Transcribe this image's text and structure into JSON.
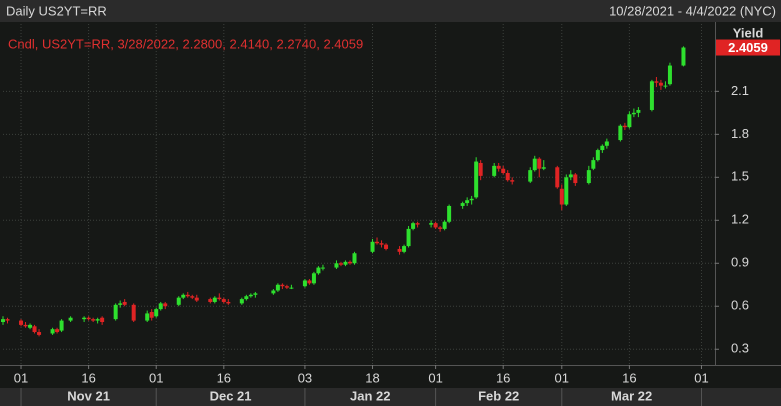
{
  "header": {
    "title": "Daily US2YT=RR",
    "range": "10/28/2021 - 4/4/2022 (NYC)"
  },
  "chart_data": {
    "type": "candlestick",
    "legend": "Cndl, US2YT=RR, 3/28/2022, 2.2800, 2.4140, 2.2740, 2.4059",
    "y_label": "Yield",
    "up_color": "#2ee02e",
    "down_color": "#e02424",
    "grid": true,
    "last_value": 2.4059,
    "xlim": [
      "2021-10-28",
      "2022-04-04"
    ],
    "xticks": [
      {
        "value": "2021-11-01",
        "label": "01"
      },
      {
        "value": "2021-11-16",
        "label": "16"
      },
      {
        "value": "2021-12-01",
        "label": "01"
      },
      {
        "value": "2021-12-16",
        "label": "16"
      },
      {
        "value": "2022-01-03",
        "label": "03"
      },
      {
        "value": "2022-01-18",
        "label": "18"
      },
      {
        "value": "2022-02-01",
        "label": "01"
      },
      {
        "value": "2022-02-16",
        "label": "16"
      },
      {
        "value": "2022-03-01",
        "label": "01"
      },
      {
        "value": "2022-03-16",
        "label": "16"
      },
      {
        "value": "2022-04-01",
        "label": "01"
      }
    ],
    "month_labels": [
      "Nov 21",
      "Dec 21",
      "Jan 22",
      "Feb 22",
      "Mar 22"
    ],
    "ylim": [
      0.19,
      2.57
    ],
    "yticks": [
      0.3,
      0.6,
      0.9,
      1.2,
      1.5,
      1.8,
      2.1
    ],
    "x": [
      "2021-10-28",
      "2021-10-29",
      "2021-11-01",
      "2021-11-02",
      "2021-11-03",
      "2021-11-04",
      "2021-11-05",
      "2021-11-08",
      "2021-11-09",
      "2021-11-10",
      "2021-11-12",
      "2021-11-15",
      "2021-11-16",
      "2021-11-17",
      "2021-11-18",
      "2021-11-19",
      "2021-11-22",
      "2021-11-23",
      "2021-11-24",
      "2021-11-26",
      "2021-11-29",
      "2021-11-30",
      "2021-12-01",
      "2021-12-02",
      "2021-12-03",
      "2021-12-06",
      "2021-12-07",
      "2021-12-08",
      "2021-12-09",
      "2021-12-10",
      "2021-12-13",
      "2021-12-14",
      "2021-12-15",
      "2021-12-16",
      "2021-12-17",
      "2021-12-20",
      "2021-12-21",
      "2021-12-22",
      "2021-12-23",
      "2021-12-27",
      "2021-12-28",
      "2021-12-29",
      "2021-12-30",
      "2021-12-31",
      "2022-01-03",
      "2022-01-04",
      "2022-01-05",
      "2022-01-06",
      "2022-01-07",
      "2022-01-10",
      "2022-01-11",
      "2022-01-12",
      "2022-01-13",
      "2022-01-14",
      "2022-01-18",
      "2022-01-19",
      "2022-01-20",
      "2022-01-21",
      "2022-01-24",
      "2022-01-25",
      "2022-01-26",
      "2022-01-27",
      "2022-01-28",
      "2022-01-31",
      "2022-02-01",
      "2022-02-02",
      "2022-02-03",
      "2022-02-04",
      "2022-02-07",
      "2022-02-08",
      "2022-02-09",
      "2022-02-10",
      "2022-02-11",
      "2022-02-14",
      "2022-02-15",
      "2022-02-16",
      "2022-02-17",
      "2022-02-18",
      "2022-02-22",
      "2022-02-23",
      "2022-02-24",
      "2022-02-25",
      "2022-02-28",
      "2022-03-01",
      "2022-03-02",
      "2022-03-03",
      "2022-03-04",
      "2022-03-07",
      "2022-03-08",
      "2022-03-09",
      "2022-03-10",
      "2022-03-11",
      "2022-03-14",
      "2022-03-15",
      "2022-03-16",
      "2022-03-17",
      "2022-03-18",
      "2022-03-21",
      "2022-03-22",
      "2022-03-23",
      "2022-03-24",
      "2022-03-25",
      "2022-03-28"
    ],
    "open": [
      0.49,
      0.51,
      0.5,
      0.47,
      0.45,
      0.46,
      0.42,
      0.41,
      0.44,
      0.43,
      0.5,
      0.51,
      0.52,
      0.51,
      0.5,
      0.52,
      0.51,
      0.61,
      0.63,
      0.61,
      0.5,
      0.56,
      0.53,
      0.58,
      0.62,
      0.61,
      0.66,
      0.68,
      0.67,
      0.66,
      0.65,
      0.63,
      0.66,
      0.65,
      0.63,
      0.62,
      0.65,
      0.67,
      0.68,
      0.69,
      0.71,
      0.75,
      0.74,
      0.73,
      0.74,
      0.78,
      0.76,
      0.83,
      0.87,
      0.87,
      0.9,
      0.89,
      0.91,
      0.9,
      0.98,
      1.05,
      1.04,
      1.03,
      1.0,
      0.98,
      1.02,
      1.14,
      1.18,
      1.17,
      1.18,
      1.15,
      1.14,
      1.19,
      1.3,
      1.32,
      1.34,
      1.36,
      1.6,
      1.51,
      1.58,
      1.56,
      1.53,
      1.48,
      1.47,
      1.55,
      1.63,
      1.56,
      1.57,
      1.42,
      1.31,
      1.5,
      1.52,
      1.46,
      1.56,
      1.62,
      1.69,
      1.72,
      1.76,
      1.86,
      1.85,
      1.94,
      1.95,
      1.97,
      2.17,
      2.16,
      2.14,
      2.15,
      2.28
    ],
    "high": [
      0.53,
      0.52,
      0.51,
      0.49,
      0.48,
      0.47,
      0.44,
      0.45,
      0.45,
      0.51,
      0.53,
      0.53,
      0.53,
      0.52,
      0.52,
      0.53,
      0.62,
      0.64,
      0.65,
      0.62,
      0.57,
      0.58,
      0.59,
      0.63,
      0.63,
      0.67,
      0.69,
      0.7,
      0.68,
      0.68,
      0.66,
      0.67,
      0.69,
      0.66,
      0.65,
      0.66,
      0.68,
      0.69,
      0.7,
      0.72,
      0.76,
      0.76,
      0.75,
      0.75,
      0.79,
      0.79,
      0.84,
      0.88,
      0.89,
      0.92,
      0.91,
      0.92,
      0.92,
      0.98,
      1.07,
      1.08,
      1.06,
      1.04,
      1.02,
      1.03,
      1.16,
      1.19,
      1.19,
      1.2,
      1.19,
      1.16,
      1.2,
      1.31,
      1.33,
      1.36,
      1.37,
      1.64,
      1.62,
      1.6,
      1.6,
      1.58,
      1.55,
      1.5,
      1.57,
      1.65,
      1.64,
      1.62,
      1.58,
      1.45,
      1.52,
      1.55,
      1.53,
      1.58,
      1.64,
      1.7,
      1.73,
      1.77,
      1.87,
      1.88,
      1.96,
      1.98,
      1.99,
      2.18,
      2.2,
      2.18,
      2.17,
      2.3,
      2.414
    ],
    "low": [
      0.47,
      0.48,
      0.46,
      0.45,
      0.44,
      0.41,
      0.39,
      0.4,
      0.41,
      0.42,
      0.49,
      0.49,
      0.5,
      0.49,
      0.48,
      0.47,
      0.5,
      0.59,
      0.6,
      0.49,
      0.49,
      0.5,
      0.52,
      0.57,
      0.58,
      0.6,
      0.65,
      0.66,
      0.65,
      0.63,
      0.62,
      0.62,
      0.64,
      0.62,
      0.61,
      0.61,
      0.64,
      0.66,
      0.66,
      0.68,
      0.7,
      0.72,
      0.72,
      0.72,
      0.73,
      0.75,
      0.75,
      0.82,
      0.85,
      0.86,
      0.88,
      0.88,
      0.89,
      0.89,
      0.97,
      1.03,
      1.01,
      0.99,
      0.96,
      0.97,
      1.01,
      1.13,
      1.15,
      1.15,
      1.14,
      1.12,
      1.13,
      1.18,
      1.28,
      1.3,
      1.31,
      1.35,
      1.48,
      1.5,
      1.54,
      1.52,
      1.47,
      1.45,
      1.46,
      1.54,
      1.5,
      1.55,
      1.42,
      1.27,
      1.3,
      1.48,
      1.44,
      1.45,
      1.55,
      1.61,
      1.67,
      1.7,
      1.75,
      1.83,
      1.84,
      1.92,
      1.92,
      1.96,
      2.13,
      2.11,
      2.12,
      2.14,
      2.274
    ],
    "close": [
      0.51,
      0.5,
      0.47,
      0.46,
      0.47,
      0.42,
      0.4,
      0.44,
      0.42,
      0.5,
      0.52,
      0.52,
      0.51,
      0.5,
      0.51,
      0.49,
      0.61,
      0.62,
      0.61,
      0.5,
      0.55,
      0.52,
      0.58,
      0.62,
      0.6,
      0.66,
      0.68,
      0.67,
      0.66,
      0.64,
      0.63,
      0.66,
      0.65,
      0.63,
      0.62,
      0.65,
      0.67,
      0.68,
      0.69,
      0.71,
      0.75,
      0.74,
      0.73,
      0.73,
      0.78,
      0.76,
      0.83,
      0.87,
      0.87,
      0.9,
      0.89,
      0.91,
      0.9,
      0.97,
      1.05,
      1.04,
      1.03,
      1.0,
      0.98,
      1.02,
      1.14,
      1.18,
      1.17,
      1.18,
      1.15,
      1.14,
      1.19,
      1.3,
      1.32,
      1.34,
      1.35,
      1.61,
      1.51,
      1.58,
      1.56,
      1.53,
      1.48,
      1.47,
      1.55,
      1.63,
      1.56,
      1.57,
      1.43,
      1.31,
      1.5,
      1.52,
      1.46,
      1.55,
      1.62,
      1.69,
      1.72,
      1.75,
      1.86,
      1.85,
      1.94,
      1.95,
      1.97,
      2.17,
      2.16,
      2.14,
      2.14,
      2.28,
      2.4059
    ]
  }
}
